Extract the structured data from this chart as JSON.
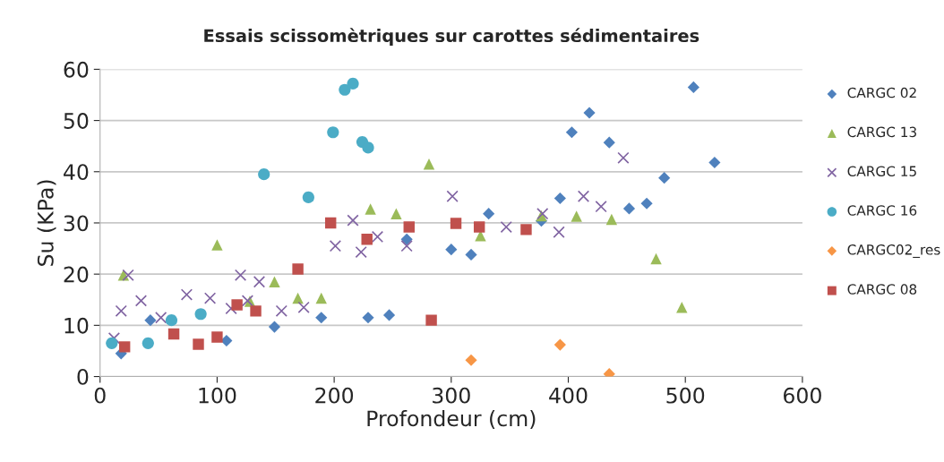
{
  "chart_data": {
    "type": "scatter",
    "title": "Essais scissomètriques sur carottes sédimentaires",
    "xlabel": "Profondeur (cm)",
    "ylabel": "Su (KPa)",
    "xlim": [
      0,
      600
    ],
    "xticks": [
      0,
      100,
      200,
      300,
      400,
      500,
      600
    ],
    "ylim": [
      0,
      60
    ],
    "yticks": [
      0,
      10,
      20,
      30,
      40,
      50,
      60
    ],
    "grid": "y",
    "legend": "right",
    "series": [
      {
        "name": "CARGC 02",
        "color": "#4f81bd",
        "marker": "diamond",
        "x": [
          18,
          43,
          108,
          149,
          189,
          229,
          247,
          262,
          300,
          317,
          332,
          377,
          393,
          403,
          418,
          435,
          452,
          467,
          482,
          507,
          525
        ],
        "values": [
          4.5,
          11,
          7,
          9.7,
          11.5,
          11.5,
          12,
          26.8,
          24.8,
          23.8,
          31.8,
          30.4,
          34.8,
          47.7,
          51.5,
          45.7,
          32.8,
          33.8,
          38.8,
          56.5,
          41.8
        ]
      },
      {
        "name": "CARGC 13",
        "color": "#9bbb59",
        "marker": "triangle",
        "x": [
          20,
          100,
          128,
          149,
          169,
          189,
          231,
          253,
          281,
          325,
          377,
          407,
          437,
          475,
          497
        ],
        "values": [
          19.8,
          25.7,
          14.7,
          18.5,
          15.3,
          15.3,
          32.7,
          31.8,
          41.5,
          27.5,
          31.4,
          31.3,
          30.7,
          23,
          13.5
        ]
      },
      {
        "name": "CARGC 15",
        "color": "#8064a2",
        "marker": "cross",
        "x": [
          12,
          18,
          24,
          35,
          52,
          74,
          94,
          112,
          120,
          126,
          136,
          155,
          174,
          201,
          216,
          223,
          237,
          262,
          301,
          347,
          378,
          392,
          413,
          428,
          447
        ],
        "values": [
          7.5,
          12.8,
          19.8,
          14.8,
          11.5,
          16,
          15.3,
          13.3,
          19.8,
          14.8,
          18.5,
          12.8,
          13.5,
          25.5,
          30.5,
          24.3,
          27.3,
          25.5,
          35.2,
          29.2,
          31.8,
          28.2,
          35.2,
          33.2,
          42.7
        ]
      },
      {
        "name": "CARGC 16",
        "color": "#4bacc6",
        "marker": "circle",
        "x": [
          10,
          41,
          61,
          86,
          140,
          178,
          199,
          209,
          216,
          224,
          229
        ],
        "values": [
          6.5,
          6.5,
          11,
          12.2,
          39.5,
          35,
          47.7,
          56,
          57.2,
          45.8,
          44.7
        ]
      },
      {
        "name": "CARGC02_res",
        "color": "#f79646",
        "marker": "diamond",
        "x": [
          317,
          393,
          435
        ],
        "values": [
          3.2,
          6.2,
          0.5
        ]
      },
      {
        "name": "CARGC 08",
        "color": "#c0504d",
        "marker": "square",
        "x": [
          21,
          63,
          84,
          100,
          117,
          133,
          169,
          197,
          228,
          264,
          283,
          304,
          324,
          364
        ],
        "values": [
          5.8,
          8.3,
          6.3,
          7.7,
          14,
          12.8,
          21,
          30,
          26.8,
          29.2,
          11,
          29.9,
          29.2,
          28.7
        ]
      }
    ]
  }
}
